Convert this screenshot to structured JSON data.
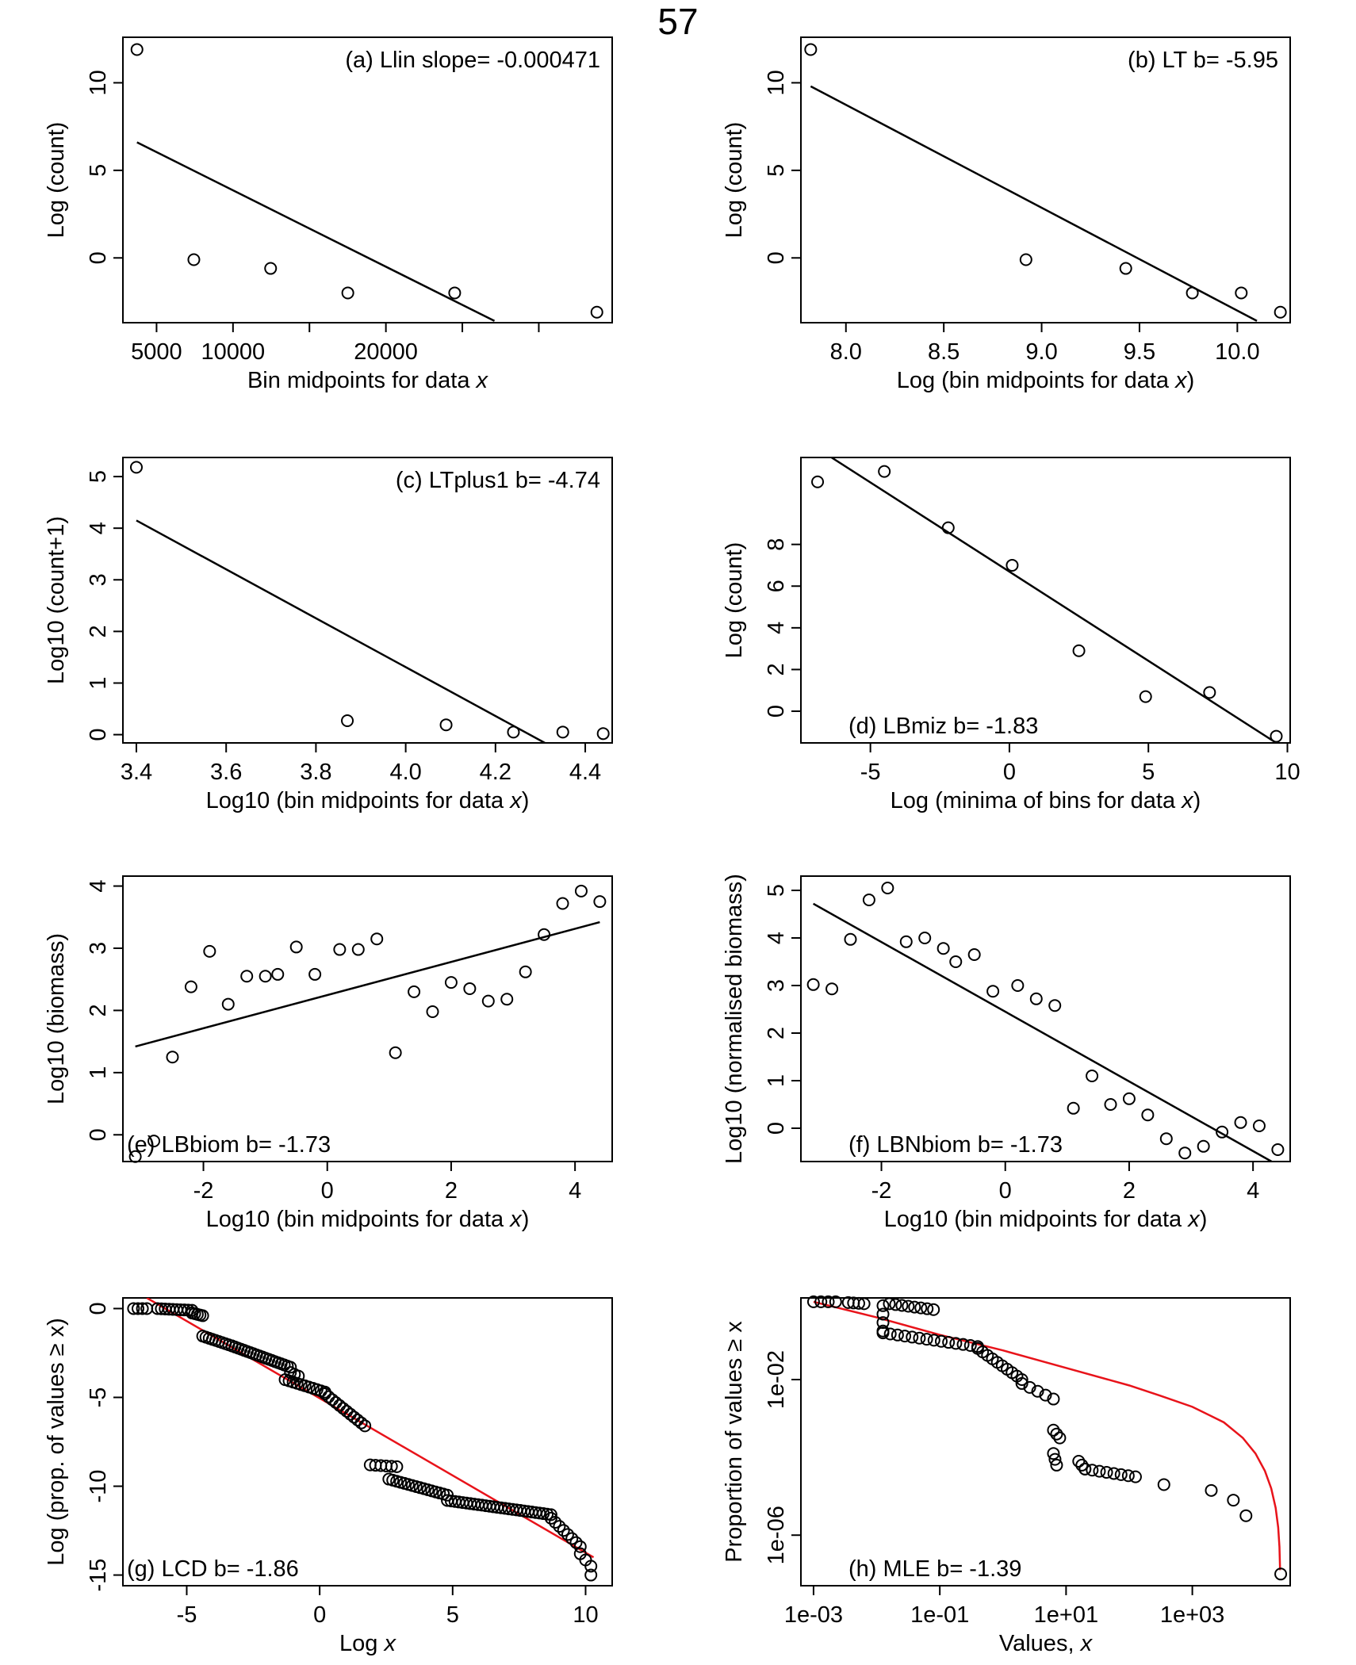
{
  "page": {
    "number": "57"
  },
  "chart_data": [
    {
      "id": "a",
      "type": "scatter",
      "annotation": "(a) Llin slope= -0.000471",
      "xlabel": "Bin midpoints for data ",
      "xlabel_var": "x",
      "xlabel_suffix": "",
      "ylabel": "Log (count)",
      "xlim": [
        2800,
        34800
      ],
      "ylim": [
        -3.7,
        12.6
      ],
      "xticks": [
        5000,
        10000,
        15000,
        20000,
        25000,
        30000
      ],
      "xticklabels": [
        "5000",
        "10000",
        "",
        "20000",
        "",
        ""
      ],
      "yticks": [
        0,
        5,
        10
      ],
      "yticklabels": [
        "0",
        "5",
        "10"
      ],
      "points": {
        "x": [
          3720,
          7440,
          12460,
          17510,
          24500,
          33800
        ],
        "y": [
          11.9,
          -0.1,
          -0.6,
          -2.0,
          -2.0,
          -3.1
        ]
      },
      "line": {
        "x": [
          3720,
          27100
        ],
        "y": [
          6.6,
          -3.6
        ],
        "color": "#000000"
      }
    },
    {
      "id": "b",
      "type": "scatter",
      "annotation": "(b) LT b= -5.95",
      "xlabel": "Log (bin midpoints for data ",
      "xlabel_var": "x",
      "xlabel_suffix": ")",
      "ylabel": "Log (count)",
      "xlim": [
        7.77,
        10.27
      ],
      "ylim": [
        -3.7,
        12.6
      ],
      "xticks": [
        8.0,
        8.5,
        9.0,
        9.5,
        10.0
      ],
      "xticklabels": [
        "8.0",
        "8.5",
        "9.0",
        "9.5",
        "10.0"
      ],
      "yticks": [
        0,
        5,
        10
      ],
      "yticklabels": [
        "0",
        "5",
        "10"
      ],
      "points": {
        "x": [
          7.82,
          8.92,
          9.43,
          9.77,
          10.02,
          10.22
        ],
        "y": [
          11.9,
          -0.1,
          -0.6,
          -2.0,
          -2.0,
          -3.1
        ]
      },
      "line": {
        "x": [
          7.82,
          10.1
        ],
        "y": [
          9.8,
          -3.6
        ],
        "color": "#000000"
      }
    },
    {
      "id": "c",
      "type": "scatter",
      "annotation": "(c) LTplus1 b= -4.74",
      "xlabel": "Log10 (bin midpoints for data ",
      "xlabel_var": "x",
      "xlabel_suffix": ")",
      "ylabel": "Log10 (count+1)",
      "xlim": [
        3.37,
        4.46
      ],
      "ylim": [
        -0.16,
        5.37
      ],
      "xticks": [
        3.4,
        3.6,
        3.8,
        4.0,
        4.2,
        4.4
      ],
      "xticklabels": [
        "3.4",
        "3.6",
        "3.8",
        "4.0",
        "4.2",
        "4.4"
      ],
      "yticks": [
        0,
        1,
        2,
        3,
        4,
        5
      ],
      "yticklabels": [
        "0",
        "1",
        "2",
        "3",
        "4",
        "5"
      ],
      "points": {
        "x": [
          3.4,
          3.87,
          4.09,
          4.24,
          4.35,
          4.44
        ],
        "y": [
          5.18,
          0.27,
          0.19,
          0.05,
          0.05,
          0.02
        ]
      },
      "line": {
        "x": [
          3.4,
          4.31
        ],
        "y": [
          4.15,
          -0.16
        ],
        "color": "#000000"
      }
    },
    {
      "id": "d",
      "type": "scatter",
      "annotation": "(d) LBmiz b= -1.83",
      "xlabel": "Log (minima of bins for data ",
      "xlabel_var": "x",
      "xlabel_suffix": ")",
      "ylabel": "Log (count)",
      "xlim": [
        -7.5,
        10.1
      ],
      "ylim": [
        -1.52,
        12.17
      ],
      "xticks": [
        -5,
        0,
        5,
        10
      ],
      "xticklabels": [
        "-5",
        "0",
        "5",
        "10"
      ],
      "yticks": [
        0,
        2,
        4,
        6,
        8
      ],
      "yticklabels": [
        "0",
        "2",
        "4",
        "6",
        "8"
      ],
      "points": {
        "x": [
          -6.9,
          -4.5,
          -2.2,
          0.1,
          2.5,
          4.9,
          7.2,
          9.6
        ],
        "y": [
          11.0,
          11.5,
          8.8,
          7.0,
          2.9,
          0.7,
          0.9,
          -1.2
        ]
      },
      "line": {
        "x": [
          -6.4,
          9.6
        ],
        "y": [
          12.17,
          -1.52
        ],
        "color": "#000000"
      }
    },
    {
      "id": "e",
      "type": "scatter",
      "annotation": "(e) LBbiom b= -1.73",
      "xlabel": "Log10 (bin midpoints for data ",
      "xlabel_var": "x",
      "xlabel_suffix": ")",
      "ylabel": "Log10 (biomass)",
      "xlim": [
        -3.3,
        4.6
      ],
      "ylim": [
        -0.43,
        4.16
      ],
      "xticks": [
        -2,
        0,
        2,
        4
      ],
      "xticklabels": [
        "-2",
        "0",
        "2",
        "4"
      ],
      "yticks": [
        0,
        1,
        2,
        3,
        4
      ],
      "yticklabels": [
        "0",
        "1",
        "2",
        "3",
        "4"
      ],
      "points": {
        "x": [
          -3.1,
          -2.8,
          -2.5,
          -2.2,
          -1.9,
          -1.6,
          -1.3,
          -1.0,
          -0.8,
          -0.5,
          -0.2,
          0.2,
          0.5,
          0.8,
          1.1,
          1.4,
          1.7,
          2.0,
          2.3,
          2.6,
          2.9,
          3.2,
          3.5,
          3.8,
          4.1,
          4.4
        ],
        "y": [
          -0.35,
          -0.1,
          1.25,
          2.38,
          2.95,
          2.1,
          2.55,
          2.55,
          2.58,
          3.02,
          2.58,
          2.98,
          2.98,
          3.15,
          1.32,
          2.3,
          1.98,
          2.45,
          2.35,
          2.15,
          2.18,
          2.62,
          3.22,
          3.72,
          3.92,
          3.75
        ]
      },
      "line": {
        "x": [
          -3.1,
          4.4
        ],
        "y": [
          1.42,
          3.42
        ],
        "color": "#000000"
      }
    },
    {
      "id": "f",
      "type": "scatter",
      "annotation": "(f) LBNbiom b= -1.73",
      "xlabel": "Log10 (bin midpoints for data ",
      "xlabel_var": "x",
      "xlabel_suffix": ")",
      "ylabel": "Log10 (normalised biomass)",
      "xlim": [
        -3.3,
        4.6
      ],
      "ylim": [
        -0.7,
        5.3
      ],
      "xticks": [
        -2,
        0,
        2,
        4
      ],
      "xticklabels": [
        "-2",
        "0",
        "2",
        "4"
      ],
      "yticks": [
        0,
        1,
        2,
        3,
        4,
        5
      ],
      "yticklabels": [
        "0",
        "1",
        "2",
        "3",
        "4",
        "5"
      ],
      "points": {
        "x": [
          -3.1,
          -2.8,
          -2.5,
          -2.2,
          -1.9,
          -1.6,
          -1.3,
          -1.0,
          -0.8,
          -0.5,
          -0.2,
          0.2,
          0.5,
          0.8,
          1.1,
          1.4,
          1.7,
          2.0,
          2.3,
          2.6,
          2.9,
          3.2,
          3.5,
          3.8,
          4.1,
          4.4
        ],
        "y": [
          3.02,
          2.93,
          3.97,
          4.8,
          5.05,
          3.92,
          4.0,
          3.78,
          3.5,
          3.65,
          2.88,
          3.0,
          2.72,
          2.58,
          0.42,
          1.1,
          0.5,
          0.62,
          0.28,
          -0.22,
          -0.52,
          -0.38,
          -0.08,
          0.12,
          0.05,
          -0.45
        ]
      },
      "line": {
        "x": [
          -3.1,
          4.3
        ],
        "y": [
          4.72,
          -0.7
        ],
        "color": "#000000"
      }
    },
    {
      "id": "g",
      "type": "scatter",
      "annotation": "(g) LCD b= -1.86",
      "xlabel": "Log ",
      "xlabel_var": "x",
      "xlabel_suffix": "",
      "ylabel": "Log (prop. of values ≥ x)",
      "xlim": [
        -7.4,
        11.0
      ],
      "ylim": [
        -15.6,
        0.6
      ],
      "xticks": [
        -5,
        0,
        5,
        10
      ],
      "xticklabels": [
        "-5",
        "0",
        "5",
        "10"
      ],
      "yticks": [
        0,
        -5,
        -10,
        -15
      ],
      "yticklabels": [
        "0",
        "-5",
        "-10",
        "-15"
      ],
      "segments": [
        {
          "x0": -7.0,
          "x1": -6.5,
          "y0": 0.0,
          "y1": 0.0,
          "n": 4
        },
        {
          "x0": -6.1,
          "x1": -4.8,
          "y0": 0.0,
          "y1": -0.1,
          "n": 10
        },
        {
          "x0": -4.8,
          "x1": -4.4,
          "y0": -0.25,
          "y1": -0.4,
          "n": 5
        },
        {
          "x0": -4.4,
          "x1": -3.3,
          "y0": -1.55,
          "y1": -2.1,
          "n": 10
        },
        {
          "x0": -3.3,
          "x1": -1.1,
          "y0": -2.1,
          "y1": -3.3,
          "n": 20
        },
        {
          "x0": -1.1,
          "x1": -0.8,
          "y0": -3.6,
          "y1": -3.8,
          "n": 3
        },
        {
          "x0": -1.3,
          "x1": 0.2,
          "y0": -4.0,
          "y1": -4.7,
          "n": 11
        },
        {
          "x0": 0.2,
          "x1": 1.7,
          "y0": -4.8,
          "y1": -6.6,
          "n": 12
        },
        {
          "x0": 1.9,
          "x1": 2.9,
          "y0": -8.8,
          "y1": -8.9,
          "n": 6
        },
        {
          "x0": 2.6,
          "x1": 4.8,
          "y0": -9.6,
          "y1": -10.5,
          "n": 16
        },
        {
          "x0": 4.8,
          "x1": 8.7,
          "y0": -10.8,
          "y1": -11.6,
          "n": 28
        },
        {
          "x0": 8.7,
          "x1": 9.8,
          "y0": -11.8,
          "y1": -13.4,
          "n": 8
        },
        {
          "x0": 9.8,
          "x1": 10.2,
          "y0": -13.8,
          "y1": -14.5,
          "n": 3
        }
      ],
      "points": {
        "x": [
          10.2
        ],
        "y": [
          -15.0
        ]
      },
      "line": {
        "x": [
          -6.5,
          10.3
        ],
        "y": [
          0.6,
          -14.0
        ],
        "color": "#e8131a"
      }
    },
    {
      "id": "h",
      "type": "scatter",
      "annotation": "(h) MLE b= -1.39",
      "xlabel": "Values, ",
      "xlabel_var": "x",
      "xlabel_suffix": "",
      "ylabel": "Proportion of values ≥ x",
      "scale": "log-log",
      "xlim_log10": [
        -3.2,
        4.55
      ],
      "ylim_log10": [
        -7.3,
        0.1
      ],
      "xticks_log10": [
        -3,
        -1,
        1,
        3
      ],
      "xticklabels": [
        "1e-03",
        "1e-01",
        "1e+01",
        "1e+03"
      ],
      "yticks_log10": [
        -2,
        -6
      ],
      "yticklabels": [
        "1e-02",
        "1e-06"
      ],
      "segments": [
        {
          "x0": -3.0,
          "x1": -2.65,
          "y0": 0.0,
          "y1": 0.0,
          "n": 4
        },
        {
          "x0": -2.45,
          "x1": -2.2,
          "y0": -0.02,
          "y1": -0.05,
          "n": 4
        },
        {
          "x0": -1.8,
          "x1": -1.1,
          "y0": -0.05,
          "y1": -0.2,
          "n": 8
        },
        {
          "x0": -1.9,
          "x1": -1.9,
          "y0": -0.1,
          "y1": -0.75,
          "n": 4
        },
        {
          "x0": -1.9,
          "x1": -0.4,
          "y0": -0.8,
          "y1": -1.15,
          "n": 14
        },
        {
          "x0": -0.4,
          "x1": 0.3,
          "y0": -1.2,
          "y1": -2.0,
          "n": 10
        },
        {
          "x0": 0.3,
          "x1": 0.8,
          "y0": -2.1,
          "y1": -2.5,
          "n": 5
        },
        {
          "x0": 0.8,
          "x1": 0.9,
          "y0": -3.3,
          "y1": -3.5,
          "n": 3
        },
        {
          "x0": 0.8,
          "x1": 0.85,
          "y0": -3.9,
          "y1": -4.2,
          "n": 3
        },
        {
          "x0": 1.2,
          "x1": 1.3,
          "y0": -4.1,
          "y1": -4.3,
          "n": 3
        },
        {
          "x0": 1.3,
          "x1": 2.1,
          "y0": -4.3,
          "y1": -4.5,
          "n": 8
        }
      ],
      "points": {
        "x": [
          2.55,
          3.3,
          3.65,
          3.85
        ],
        "y": [
          -4.7,
          -4.85,
          -5.1,
          -5.5
        ]
      },
      "single_points": {
        "x": [
          4.4
        ],
        "y": [
          -7.0
        ]
      },
      "curve": {
        "color": "#e8131a",
        "x": [
          -3.0,
          -2.0,
          -1.0,
          0.0,
          1.0,
          2.0,
          2.5,
          3.0,
          3.5,
          3.8,
          4.0,
          4.15,
          4.25,
          4.32,
          4.36,
          4.38,
          4.39
        ],
        "y": [
          0.0,
          -0.4,
          -0.85,
          -1.25,
          -1.7,
          -2.15,
          -2.42,
          -2.7,
          -3.1,
          -3.5,
          -3.9,
          -4.35,
          -4.8,
          -5.3,
          -5.8,
          -6.3,
          -6.9
        ]
      }
    }
  ]
}
